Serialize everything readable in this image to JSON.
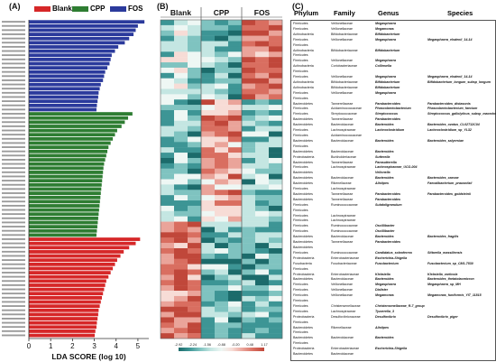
{
  "panels": {
    "a": "(A)",
    "b": "(B)",
    "c": "(C)"
  },
  "legend": [
    {
      "name": "Blank",
      "color": "#d62728"
    },
    {
      "name": "CPP",
      "color": "#2e7d32"
    },
    {
      "name": "FOS",
      "color": "#2b3a9c"
    }
  ],
  "chart_data": {
    "type": "bar",
    "orientation": "horizontal",
    "xlabel": "LDA SCORE (log 10)",
    "xlim": [
      0,
      5.5
    ],
    "xticks": [
      0,
      1,
      2,
      3,
      4,
      5
    ],
    "groups": [
      {
        "name": "FOS",
        "values": [
          5.3,
          5.0,
          4.9,
          4.8,
          4.6,
          4.4,
          4.1,
          3.95,
          3.8,
          3.75,
          3.7,
          3.6,
          3.5,
          3.45,
          3.4,
          3.3,
          3.25,
          3.2,
          3.18,
          3.15,
          3.12,
          3.1
        ]
      },
      {
        "name": "CPP",
        "values": [
          4.75,
          4.55,
          4.4,
          4.25,
          4.05,
          3.95,
          3.85,
          3.75,
          3.65,
          3.6,
          3.55,
          3.5,
          3.45,
          3.42,
          3.4,
          3.38,
          3.36,
          3.34,
          3.32,
          3.3,
          3.28,
          3.26,
          3.24,
          3.22,
          3.2,
          3.18,
          3.16,
          3.14,
          3.12,
          3.1
        ]
      },
      {
        "name": "Blank",
        "values": [
          5.1,
          4.9,
          4.6,
          4.35,
          4.2,
          4.05,
          3.95,
          3.85,
          3.75,
          3.65,
          3.55,
          3.5,
          3.45,
          3.4,
          3.35,
          3.3,
          3.25,
          3.2,
          3.18,
          3.15,
          3.12,
          3.1,
          3.05,
          3.02
        ]
      }
    ]
  },
  "heatmap": {
    "columns": [
      "Blank",
      "CPP",
      "FOS"
    ],
    "scale_ticks": [
      "-2.92",
      "-2.24",
      "-1.56",
      "-0.88",
      "-0.20",
      "0.48",
      "1.17"
    ]
  },
  "table": {
    "headers": [
      "Phylum",
      "Family",
      "Genus",
      "Species"
    ],
    "rows": [
      [
        "Firmicutes",
        "Veillonellaceae",
        "Megasphaera",
        ""
      ],
      [
        "Firmicutes",
        "Veillonellaceae",
        "Megamonas",
        ""
      ],
      [
        "Actinobacteria",
        "Bifidobacteriaceae",
        "Bifidobacterium",
        ""
      ],
      [
        "Firmicutes",
        "Veillonellaceae",
        "Megasphaera",
        "Megasphaera_elsdenii_14-14"
      ],
      [
        "Firmicutes",
        "",
        "",
        ""
      ],
      [
        "Actinobacteria",
        "Bifidobacteriaceae",
        "Bifidobacterium",
        ""
      ],
      [
        "Firmicutes",
        "",
        "",
        ""
      ],
      [
        "Firmicutes",
        "Veillonellaceae",
        "Megasphaera",
        ""
      ],
      [
        "Actinobacteria",
        "Coriobacteriaceae",
        "Collinsella",
        ""
      ],
      [
        "Firmicutes",
        "",
        "",
        ""
      ],
      [
        "Firmicutes",
        "Veillonellaceae",
        "Megasphaera",
        "Megasphaera_elsdenii_14-14"
      ],
      [
        "Actinobacteria",
        "Bifidobacteriaceae",
        "Bifidobacterium",
        "Bifidobacterium_longum_subsp_longum"
      ],
      [
        "Actinobacteria",
        "Bifidobacteriaceae",
        "Bifidobacterium",
        ""
      ],
      [
        "Firmicutes",
        "Veillonellaceae",
        "Megasphaera",
        ""
      ],
      [
        "Firmicutes",
        "",
        "",
        ""
      ],
      [
        "Bacteroidetes",
        "Tannerellaceae",
        "Parabacteroides",
        "Parabacteroides_distasonis"
      ],
      [
        "Firmicutes",
        "Acidaminococcaceae",
        "Phascolarctobacterium",
        "Phascolarctobacterium_faecium"
      ],
      [
        "Firmicutes",
        "Streptococcaceae",
        "Streptococcus",
        "Streptococcus_gallolyticus_subsp_macedonicus"
      ],
      [
        "Bacteroidetes",
        "Tannerellaceae",
        "Parabacteroides",
        ""
      ],
      [
        "Bacteroidetes",
        "Bacteroidaceae",
        "Bacteroides",
        "Bacteroides_ovatus_CL02T12C04"
      ],
      [
        "Firmicutes",
        "Lachnospiraceae",
        "Lachnoclostridium",
        "Lachnoclostridium_sp_YL32"
      ],
      [
        "Firmicutes",
        "Acidaminococcaceae",
        "",
        ""
      ],
      [
        "Bacteroidetes",
        "Bacteroidaceae",
        "Bacteroides",
        "Bacteroides_salyersiae"
      ],
      [
        "Firmicutes",
        "",
        "",
        ""
      ],
      [
        "Bacteroidetes",
        "Bacteroidaceae",
        "Bacteroides",
        ""
      ],
      [
        "Proteobacteria",
        "Burkholderiaceae",
        "Sutterella",
        ""
      ],
      [
        "Bacteroidetes",
        "Tannerellaceae",
        "Parasutterella",
        ""
      ],
      [
        "Firmicutes",
        "Lachnospiraceae",
        "Lachnospiraceae_UCG-004",
        ""
      ],
      [
        "Bacteroidetes",
        "",
        "Vellonella",
        ""
      ],
      [
        "Bacteroidetes",
        "Bacteroidaceae",
        "Bacteroides",
        "Bacteroides_caecae"
      ],
      [
        "Bacteroidetes",
        "Rikenellaceae",
        "Alistipes",
        "Faecalibacterium_prausnitzii"
      ],
      [
        "Firmicutes",
        "Lachnospiraceae",
        "",
        ""
      ],
      [
        "Bacteroidetes",
        "Tannerellaceae",
        "Parabacteroides",
        "Parabacteroides_goldsteinii"
      ],
      [
        "Bacteroidetes",
        "Tannerellaceae",
        "Parabacteroides",
        ""
      ],
      [
        "Firmicutes",
        "Ruminococcaceae",
        "Subdoligranulum",
        ""
      ],
      [
        "Firmicutes",
        "",
        "",
        ""
      ],
      [
        "Firmicutes",
        "Lachnospiraceae",
        "",
        ""
      ],
      [
        "Firmicutes",
        "Lachnospiraceae",
        "",
        ""
      ],
      [
        "Firmicutes",
        "Ruminococcaceae",
        "Oscillibacter",
        ""
      ],
      [
        "Firmicutes",
        "Ruminococcaceae",
        "Oscillibacter",
        ""
      ],
      [
        "Bacteroidetes",
        "Bacteroidaceae",
        "Bacteroides",
        "Bacteroides_fragilis"
      ],
      [
        "Bacteroidetes",
        "Tannerellaceae",
        "Parabacteroides",
        ""
      ],
      [
        "Bacteroidetes",
        "",
        "",
        ""
      ],
      [
        "Firmicutes",
        "Ruminococcaceae",
        "Candidatus_soleaferrea",
        "Sittarella_massiliensis"
      ],
      [
        "Proteobacteria",
        "Enterobacteriaceae",
        "Escherichia-Shigella",
        ""
      ],
      [
        "Fusobacteria",
        "Fusobacteriaceae",
        "Fusobacterium",
        "Fusobacterium_sp_CM1-7530"
      ],
      [
        "Firmicutes",
        "",
        "",
        ""
      ],
      [
        "Proteobacteria",
        "Enterobacteriaceae",
        "Klebsiella",
        "Klebsiella_variicola"
      ],
      [
        "Bacteroidetes",
        "Bacteroidaceae",
        "Bacteroides",
        "Bacteroides_thetaiotaomicron"
      ],
      [
        "Firmicutes",
        "Veillonellaceae",
        "Megasphaera",
        "Megasphaera_sp_MH"
      ],
      [
        "Firmicutes",
        "Veillonellaceae",
        "Dialister",
        ""
      ],
      [
        "Firmicutes",
        "Veillonellaceae",
        "Megamonas",
        "Megamonas_funiformis_YIT_11815"
      ],
      [
        "Firmicutes",
        "",
        "",
        ""
      ],
      [
        "Firmicutes",
        "Christensenellaceae",
        "Christensenellaceae_R-7_group",
        ""
      ],
      [
        "Firmicutes",
        "Lachnospiraceae",
        "Tyzzerella_3",
        ""
      ],
      [
        "Proteobacteria",
        "Desulfovibrionaceae",
        "Desulfovibrio",
        "Desulfovibrio_piger"
      ],
      [
        "Firmicutes",
        "",
        "",
        ""
      ],
      [
        "Bacteroidetes",
        "Rikenellaceae",
        "Alistipes",
        ""
      ],
      [
        "Firmicutes",
        "",
        "",
        ""
      ],
      [
        "Bacteroidetes",
        "Bacteroidaceae",
        "Bacteroides",
        ""
      ],
      [
        "Firmicutes",
        "",
        "",
        ""
      ],
      [
        "Proteobacteria",
        "Enterobacteriaceae",
        "Escherichia-Shigella",
        ""
      ],
      [
        "Bacteroidetes",
        "Bacteroidaceae",
        "",
        ""
      ]
    ]
  }
}
